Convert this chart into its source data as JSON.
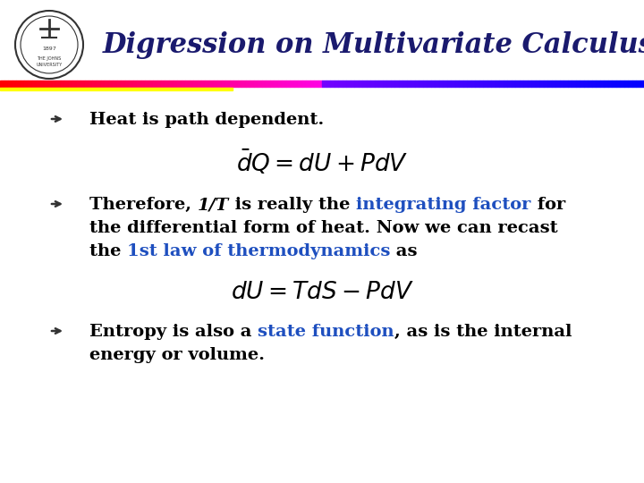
{
  "title": "Digression on Multivariate Calculus",
  "title_color": "#1a1a6e",
  "bg_color": "#ffffff",
  "bullet1": "Heat is path dependent.",
  "bullet2_line1": [
    {
      "text": "Therefore, ",
      "color": "#000000",
      "italic": false
    },
    {
      "text": "1/T",
      "color": "#000000",
      "italic": true
    },
    {
      "text": " is really the ",
      "color": "#000000",
      "italic": false
    },
    {
      "text": "integrating factor",
      "color": "#1e4fbf",
      "italic": false
    },
    {
      "text": " for",
      "color": "#000000",
      "italic": false
    }
  ],
  "bullet2_line2": "the differential form of heat. Now we can recast",
  "bullet2_line3": [
    {
      "text": "the ",
      "color": "#000000",
      "italic": false
    },
    {
      "text": "1st law of thermodynamics",
      "color": "#1e4fbf",
      "italic": false
    },
    {
      "text": " as",
      "color": "#000000",
      "italic": false
    }
  ],
  "bullet3_line1": [
    {
      "text": "Entropy is also a ",
      "color": "#000000",
      "italic": false
    },
    {
      "text": "state function",
      "color": "#1e4fbf",
      "italic": false
    },
    {
      "text": ", as is the internal",
      "color": "#000000",
      "italic": false
    }
  ],
  "bullet3_line2": "energy or volume.",
  "text_color": "#000000",
  "navy_color": "#1a1a6e",
  "blue_color": "#1e4fbf",
  "fsz": 14.0,
  "title_fsz": 22.0,
  "eq_fsz": 19.0
}
